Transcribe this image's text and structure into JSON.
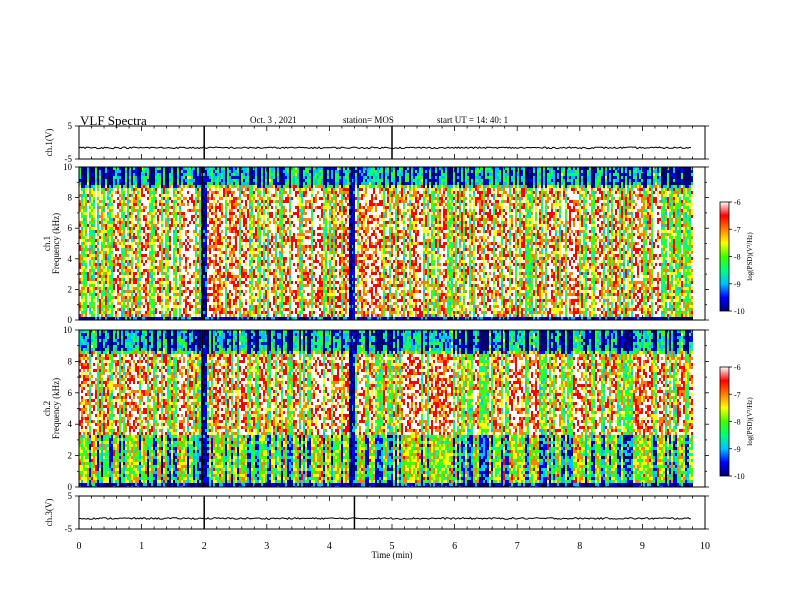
{
  "header": {
    "title": "VLF Spectra",
    "date": "Oct. 3  , 2021",
    "station": "station= MOS",
    "start": "start  UT  =   14: 40: 1"
  },
  "chart_data": [
    {
      "type": "line",
      "panel": "ch1-waveform",
      "ylabel": "ch.1(V)",
      "ylim": [
        -5,
        5
      ],
      "yticks": [
        5,
        -5
      ],
      "xlim": [
        0,
        10
      ],
      "x_end": 9.8,
      "series": [
        {
          "baseline": -1.6,
          "spikes_min": [
            2.0,
            5.0
          ]
        }
      ],
      "color": "#000000"
    },
    {
      "type": "heatmap",
      "panel": "ch1-spectrogram",
      "ylabel": "ch.1\nFrequency (kHz)",
      "ylabel_lines": [
        "ch.1",
        "Frequency (kHz)"
      ],
      "ylim": [
        0,
        10
      ],
      "yticks": [
        0,
        2,
        4,
        6,
        8,
        10
      ],
      "xlim": [
        0,
        10
      ],
      "x_end": 9.8,
      "high_band_khz": [
        0.3,
        8.7
      ],
      "dark_columns_min": [
        1.97,
        4.35
      ],
      "colorbar": {
        "label": "log(PSD)(V²/Hz)",
        "range": [
          -10,
          -6
        ],
        "ticks": [
          -6,
          -7,
          -8,
          -9,
          -10
        ]
      }
    },
    {
      "type": "heatmap",
      "panel": "ch2-spectrogram",
      "ylabel": "ch.2\nFrequency (kHz)",
      "ylabel_lines": [
        "ch.2",
        "Frequency (kHz)"
      ],
      "ylim": [
        0,
        10
      ],
      "yticks": [
        0,
        2,
        4,
        6,
        8,
        10
      ],
      "xlim": [
        0,
        10
      ],
      "x_end": 9.8,
      "high_band_khz": [
        3.5,
        8.5
      ],
      "dark_columns_min": [
        1.97,
        4.35
      ],
      "colorbar": {
        "label": "log(PSD)(V²/Hz)",
        "range": [
          -10,
          -6
        ],
        "ticks": [
          -6,
          -7,
          -8,
          -9,
          -10
        ]
      }
    },
    {
      "type": "line",
      "panel": "ch3-waveform",
      "ylabel": "ch.3(V)",
      "ylim": [
        -5,
        5
      ],
      "yticks": [
        5,
        -5
      ],
      "xlim": [
        0,
        10
      ],
      "x_end": 9.8,
      "xlabel": "Time (min)",
      "xticks": [
        0,
        1,
        2,
        3,
        4,
        5,
        6,
        7,
        8,
        9,
        10
      ],
      "series": [
        {
          "baseline": -1.8,
          "spikes_min": [
            2.0,
            4.4
          ]
        }
      ],
      "color": "#000000"
    }
  ],
  "colors": {
    "colormap": [
      "#000070",
      "#0000ff",
      "#00c0ff",
      "#00ff80",
      "#40ff00",
      "#ffff00",
      "#ff8000",
      "#ff0000",
      "#ffffff"
    ]
  }
}
